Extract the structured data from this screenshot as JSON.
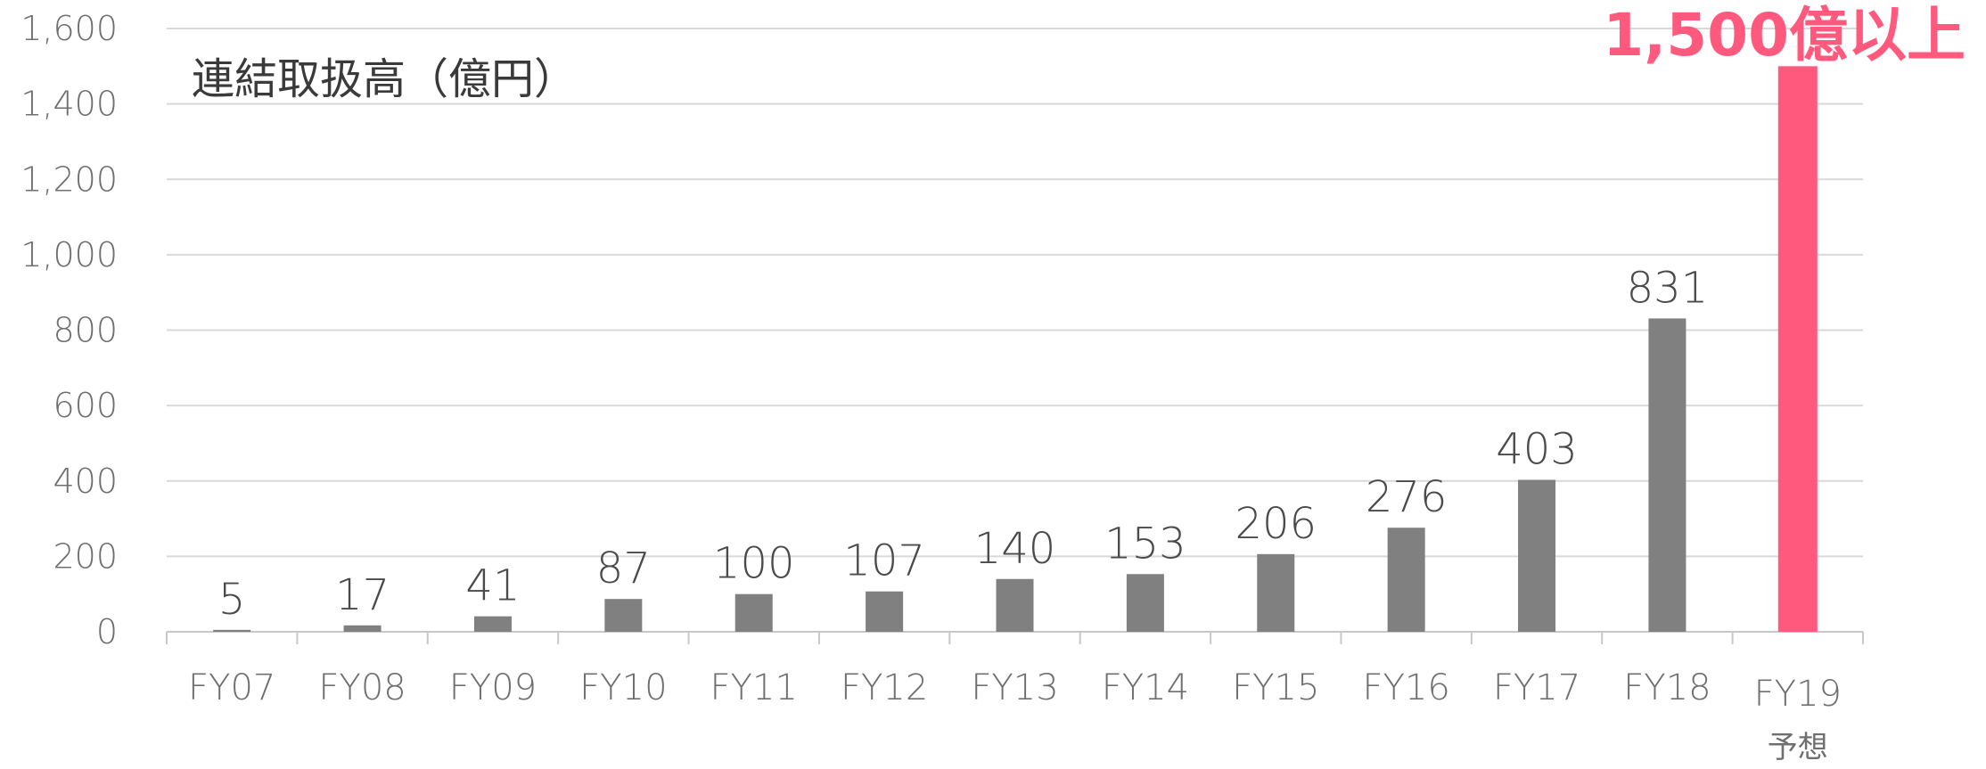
{
  "chart_data": {
    "type": "bar",
    "title": "連結取扱高（億円）",
    "categories": [
      "FY07",
      "FY08",
      "FY09",
      "FY10",
      "FY11",
      "FY12",
      "FY13",
      "FY14",
      "FY15",
      "FY16",
      "FY17",
      "FY18",
      "FY19"
    ],
    "category_sublabels": [
      "",
      "",
      "",
      "",
      "",
      "",
      "",
      "",
      "",
      "",
      "",
      "",
      "予想"
    ],
    "values": [
      5,
      17,
      41,
      87,
      100,
      107,
      140,
      153,
      206,
      276,
      403,
      831,
      1500
    ],
    "data_labels": [
      "5",
      "17",
      "41",
      "87",
      "100",
      "107",
      "140",
      "153",
      "206",
      "276",
      "403",
      "831",
      ""
    ],
    "callout": "1,500億以上",
    "ylim": [
      0,
      1600
    ],
    "yticks": [
      0,
      200,
      400,
      600,
      800,
      1000,
      1200,
      1400,
      1600
    ],
    "ytick_labels": [
      "0",
      "200",
      "400",
      "600",
      "800",
      "1,000",
      "1,200",
      "1,400",
      "1,600"
    ],
    "grid": true,
    "colors": {
      "bar": "#808080",
      "highlight": "#ff5a7e",
      "grid": "#d9d9d9"
    }
  }
}
